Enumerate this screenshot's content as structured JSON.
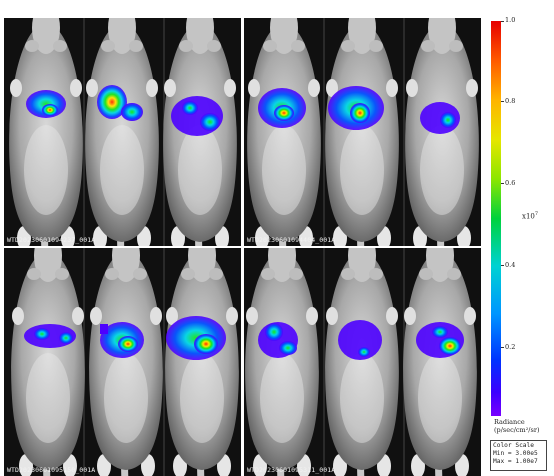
{
  "panels": [
    {
      "id": "top-left",
      "label": "WTD20230601094237_001A"
    },
    {
      "id": "top-right",
      "label": "WTD20230601094404_001A"
    },
    {
      "id": "bottom-left",
      "label": "WTD20230601095150_001A"
    },
    {
      "id": "bottom-right",
      "label": "WTD20230601095311_001A"
    }
  ],
  "colorbar": {
    "top_label": "1.0",
    "ticks": [
      "1.0",
      "0.8",
      "0.6",
      "0.4",
      "0.2"
    ],
    "multiplier": "x10",
    "multiplier_exp": "7",
    "radiance_line1": "Radiance",
    "radiance_line2": "(p/sec/cm²/sr)",
    "scale_title": "Color Scale",
    "scale_min": "Min = 3.00e5",
    "scale_max": "Max = 1.00e7"
  }
}
